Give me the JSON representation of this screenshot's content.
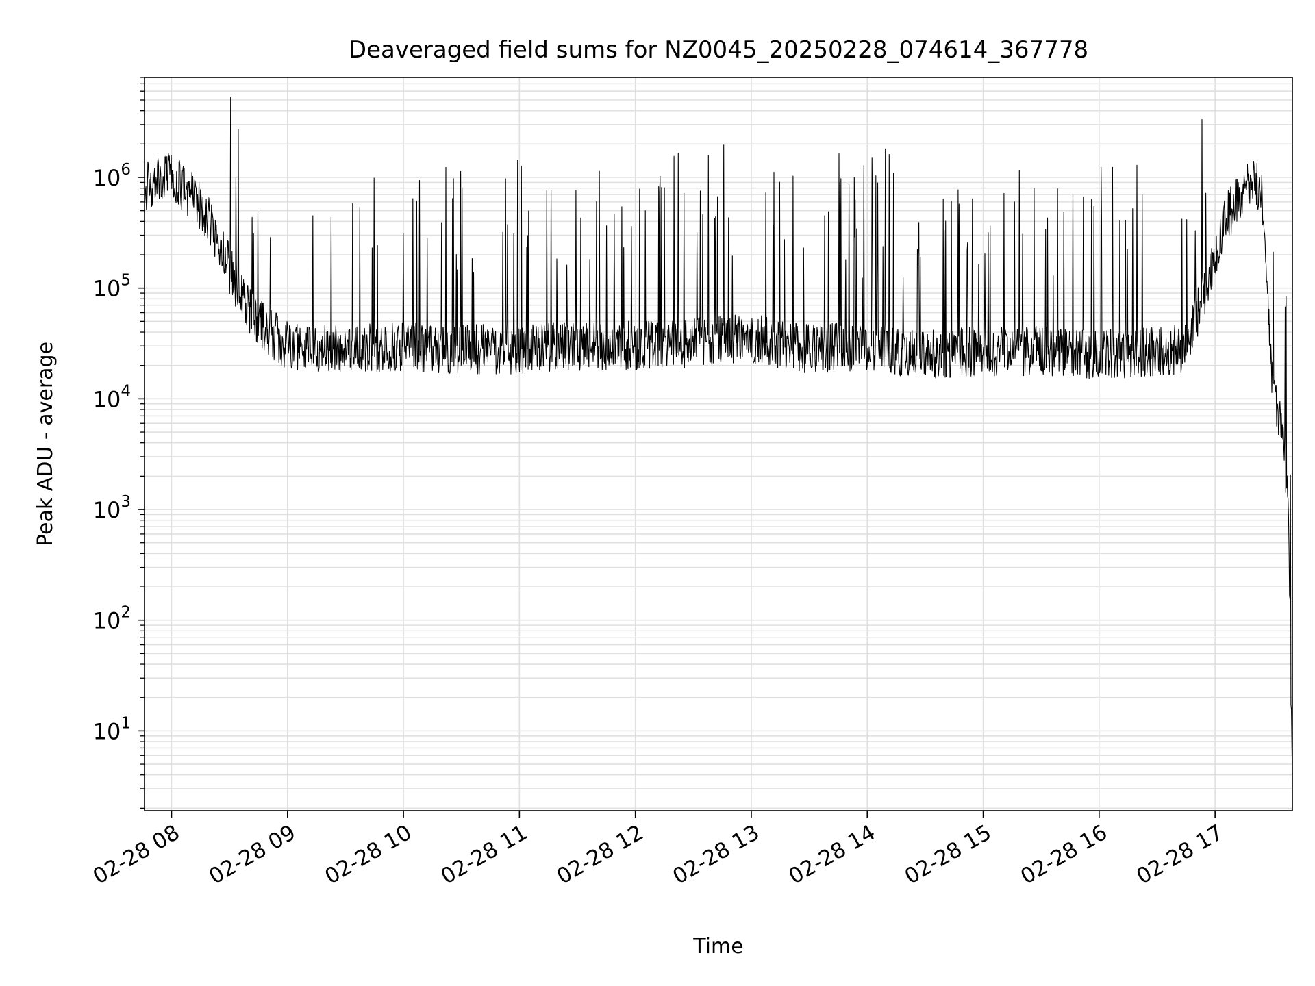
{
  "chart_data": {
    "type": "line",
    "title": "Deaveraged field sums for NZ0045_20250228_074614_367778",
    "xlabel": "Time",
    "ylabel": "Peak ADU - average",
    "x_scale": "time",
    "y_scale": "log",
    "xlim": [
      "2025-02-28 07:46",
      "2025-02-28 17:40"
    ],
    "ylim": [
      1.9,
      8000000
    ],
    "x_ticks": [
      {
        "value": "2025-02-28 08:00",
        "label": "02-28 08"
      },
      {
        "value": "2025-02-28 09:00",
        "label": "02-28 09"
      },
      {
        "value": "2025-02-28 10:00",
        "label": "02-28 10"
      },
      {
        "value": "2025-02-28 11:00",
        "label": "02-28 11"
      },
      {
        "value": "2025-02-28 12:00",
        "label": "02-28 12"
      },
      {
        "value": "2025-02-28 13:00",
        "label": "02-28 13"
      },
      {
        "value": "2025-02-28 14:00",
        "label": "02-28 14"
      },
      {
        "value": "2025-02-28 15:00",
        "label": "02-28 15"
      },
      {
        "value": "2025-02-28 16:00",
        "label": "02-28 16"
      },
      {
        "value": "2025-02-28 17:00",
        "label": "02-28 17"
      }
    ],
    "y_ticks": [
      {
        "value": 10,
        "base": "10",
        "exp": "1"
      },
      {
        "value": 100,
        "base": "10",
        "exp": "2"
      },
      {
        "value": 1000,
        "base": "10",
        "exp": "3"
      },
      {
        "value": 10000,
        "base": "10",
        "exp": "4"
      },
      {
        "value": 100000,
        "base": "10",
        "exp": "5"
      },
      {
        "value": 1000000,
        "base": "10",
        "exp": "6"
      }
    ],
    "grid": true,
    "line_color": "#000000",
    "grid_color": "#e0e0e0",
    "series": [
      {
        "x": [
          "2025-02-28 07:46",
          "2025-02-28 08:00",
          "2025-02-28 08:10",
          "2025-02-28 08:20",
          "2025-02-28 08:30",
          "2025-02-28 08:40",
          "2025-02-28 08:50",
          "2025-02-28 09:00",
          "2025-02-28 09:30",
          "2025-02-28 10:00",
          "2025-02-28 10:30",
          "2025-02-28 11:00",
          "2025-02-28 11:30",
          "2025-02-28 12:00",
          "2025-02-28 12:30",
          "2025-02-28 13:00",
          "2025-02-28 13:30",
          "2025-02-28 14:00",
          "2025-02-28 14:30",
          "2025-02-28 15:00",
          "2025-02-28 15:30",
          "2025-02-28 16:00",
          "2025-02-28 16:30",
          "2025-02-28 16:45",
          "2025-02-28 16:55",
          "2025-02-28 17:05",
          "2025-02-28 17:15",
          "2025-02-28 17:20",
          "2025-02-28 17:25",
          "2025-02-28 17:30",
          "2025-02-28 17:35",
          "2025-02-28 17:38",
          "2025-02-28 17:40"
        ],
        "y": [
          800000,
          1000000,
          700000,
          400000,
          150000,
          60000,
          40000,
          30000,
          28000,
          30000,
          28000,
          28000,
          30000,
          30000,
          32000,
          35000,
          28000,
          30000,
          25000,
          27000,
          27000,
          25000,
          27000,
          28000,
          100000,
          400000,
          800000,
          1000000,
          600000,
          10000,
          5000,
          1000,
          3.5
        ]
      }
    ]
  }
}
